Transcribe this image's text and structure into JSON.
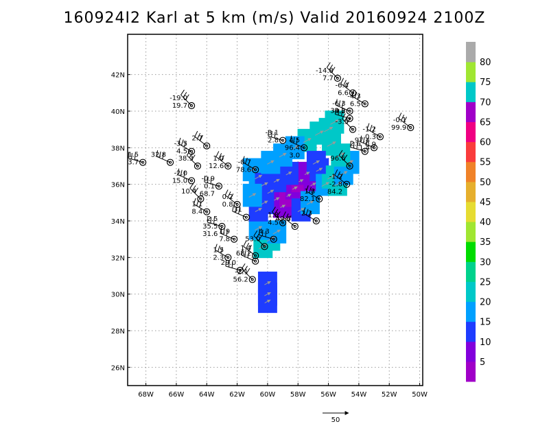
{
  "title": "160924I2 Karl at 5 km (m/s) Valid 20160924 2100Z",
  "chart_data": {
    "type": "heatmap",
    "title": "160924I2 Karl at 5 km (m/s) Valid 20160924 2100Z",
    "x_ticks": [
      "68W",
      "66W",
      "64W",
      "62W",
      "60W",
      "58W",
      "56W",
      "54W",
      "52W",
      "50W"
    ],
    "x_tick_values": [
      -68,
      -66,
      -64,
      -62,
      -60,
      -58,
      -56,
      -54,
      -52,
      -50
    ],
    "y_ticks": [
      "26N",
      "28N",
      "30N",
      "32N",
      "34N",
      "36N",
      "38N",
      "40N",
      "42N"
    ],
    "y_tick_values": [
      26,
      28,
      30,
      32,
      34,
      36,
      38,
      40,
      42
    ],
    "xlim": [
      -69.2,
      -49.8
    ],
    "ylim": [
      25.0,
      44.2
    ],
    "grid": true,
    "colorbar": {
      "placement": "right",
      "levels": [
        "5",
        "10",
        "15",
        "20",
        "25",
        "30",
        "35",
        "40",
        "45",
        "50",
        "55",
        "60",
        "65",
        "70",
        "75",
        "80"
      ],
      "colors": [
        "#a000c8",
        "#8200dc",
        "#1e3cff",
        "#00a0ff",
        "#00c8c8",
        "#00d28c",
        "#00dc00",
        "#a0e632",
        "#e6dc32",
        "#e6af2d",
        "#f08228",
        "#fa3c3c",
        "#f00082",
        "#a000c8",
        "#00c8c8",
        "#a0e632",
        "#aaaaaa"
      ]
    },
    "reference_vector": {
      "label": "50"
    },
    "wind_cells": [
      {
        "lon": -60.0,
        "lat": 30.6,
        "speed": 12
      },
      {
        "lon": -60.0,
        "lat": 30.0,
        "speed": 12
      },
      {
        "lon": -60.0,
        "lat": 29.6,
        "speed": 10
      },
      {
        "lon": -60.3,
        "lat": 32.6,
        "speed": 22
      },
      {
        "lon": -59.8,
        "lat": 33.0,
        "speed": 20
      },
      {
        "lon": -59.4,
        "lat": 33.4,
        "speed": 18
      },
      {
        "lon": -60.6,
        "lat": 33.6,
        "speed": 16
      },
      {
        "lon": -61.0,
        "lat": 36.8,
        "speed": 15
      },
      {
        "lon": -60.6,
        "lat": 36.4,
        "speed": 16
      },
      {
        "lon": -60.2,
        "lat": 36.0,
        "speed": 14
      },
      {
        "lon": -59.8,
        "lat": 35.6,
        "speed": 12
      },
      {
        "lon": -59.4,
        "lat": 35.2,
        "speed": 8
      },
      {
        "lon": -59.0,
        "lat": 34.8,
        "speed": 6
      },
      {
        "lon": -58.6,
        "lat": 35.4,
        "speed": 4
      },
      {
        "lon": -58.2,
        "lat": 35.8,
        "speed": 6
      },
      {
        "lon": -57.8,
        "lat": 36.2,
        "speed": 4
      },
      {
        "lon": -57.4,
        "lat": 36.6,
        "speed": 6
      },
      {
        "lon": -57.0,
        "lat": 36.0,
        "speed": 8
      },
      {
        "lon": -58.6,
        "lat": 36.6,
        "speed": 10
      },
      {
        "lon": -59.4,
        "lat": 36.2,
        "speed": 10
      },
      {
        "lon": -60.2,
        "lat": 35.0,
        "speed": 13
      },
      {
        "lon": -60.6,
        "lat": 34.6,
        "speed": 14
      },
      {
        "lon": -61.0,
        "lat": 35.4,
        "speed": 16
      },
      {
        "lon": -57.8,
        "lat": 34.6,
        "speed": 14
      },
      {
        "lon": -57.2,
        "lat": 35.0,
        "speed": 15
      },
      {
        "lon": -56.6,
        "lat": 36.8,
        "speed": 12
      },
      {
        "lon": -56.2,
        "lat": 36.0,
        "speed": 18
      },
      {
        "lon": -55.8,
        "lat": 36.4,
        "speed": 20
      },
      {
        "lon": -55.4,
        "lat": 36.0,
        "speed": 22
      },
      {
        "lon": -55.0,
        "lat": 36.6,
        "speed": 18
      },
      {
        "lon": -54.6,
        "lat": 37.2,
        "speed": 16
      },
      {
        "lon": -55.2,
        "lat": 37.6,
        "speed": 22
      },
      {
        "lon": -55.8,
        "lat": 38.2,
        "speed": 24
      },
      {
        "lon": -56.6,
        "lat": 38.8,
        "speed": 22
      },
      {
        "lon": -57.4,
        "lat": 38.4,
        "speed": 20
      },
      {
        "lon": -58.2,
        "lat": 38.0,
        "speed": 18
      },
      {
        "lon": -59.0,
        "lat": 37.6,
        "speed": 16
      },
      {
        "lon": -59.8,
        "lat": 37.2,
        "speed": 15
      },
      {
        "lon": -55.6,
        "lat": 39.4,
        "speed": 22
      },
      {
        "lon": -56.0,
        "lat": 39.0,
        "speed": 24
      },
      {
        "lon": -56.8,
        "lat": 37.2,
        "speed": 14
      }
    ],
    "stations": [
      {
        "lon": -55.4,
        "lat": 41.8,
        "labels": [
          "-14.8",
          "7.7"
        ]
      },
      {
        "lon": -54.4,
        "lat": 41.0,
        "labels": [
          "-6.4",
          "6.6"
        ]
      },
      {
        "lon": -53.6,
        "lat": 40.4,
        "labels": [
          "-4.3",
          "6.5"
        ]
      },
      {
        "lon": -54.6,
        "lat": 40.0,
        "labels": [
          "-6.3",
          "-4.2"
        ]
      },
      {
        "lon": -54.6,
        "lat": 39.6,
        "labels": [
          "39.8"
        ]
      },
      {
        "lon": -54.4,
        "lat": 39.0,
        "labels": [
          "-3.5"
        ]
      },
      {
        "lon": -50.6,
        "lat": 39.1,
        "labels": [
          "-0.1",
          "99.9"
        ]
      },
      {
        "lon": -52.6,
        "lat": 38.6,
        "labels": [
          "-1.2",
          "0.3",
          "0.9"
        ]
      },
      {
        "lon": -53.0,
        "lat": 38.0,
        "labels": [
          "97.4",
          "1.4"
        ]
      },
      {
        "lon": -53.6,
        "lat": 37.8,
        "labels": [
          "2.6"
        ]
      },
      {
        "lon": -54.6,
        "lat": 37.0,
        "labels": [
          "96.6"
        ]
      },
      {
        "lon": -54.8,
        "lat": 36.0,
        "labels": [
          "-1.2",
          "-2.8",
          "84.2"
        ]
      },
      {
        "lon": -56.6,
        "lat": 35.2,
        "labels": [
          "1.8",
          "82.1"
        ]
      },
      {
        "lon": -57.6,
        "lat": 38.0,
        "labels": [
          "4.5",
          "96.4",
          "3.0"
        ]
      },
      {
        "lon": -59.0,
        "lat": 38.4,
        "labels": [
          "-3.1",
          "2.8"
        ]
      },
      {
        "lon": -65.0,
        "lat": 40.3,
        "labels": [
          "-19.0",
          "19.7"
        ]
      },
      {
        "lon": -64.0,
        "lat": 38.1,
        "labels": [
          "2.7"
        ]
      },
      {
        "lon": -65.0,
        "lat": 37.8,
        "labels": [
          "-3.5",
          "4.5"
        ]
      },
      {
        "lon": -66.4,
        "lat": 37.2,
        "labels": [
          "32.8"
        ]
      },
      {
        "lon": -68.2,
        "lat": 37.2,
        "labels": [
          "-1.5",
          "3.7"
        ]
      },
      {
        "lon": -64.6,
        "lat": 37.0,
        "labels": [
          "38.3"
        ]
      },
      {
        "lon": -62.6,
        "lat": 37.0,
        "labels": [
          "1.0",
          "12.6"
        ]
      },
      {
        "lon": -60.8,
        "lat": 36.8,
        "labels": [
          "-0.7",
          "78.6"
        ]
      },
      {
        "lon": -65.0,
        "lat": 36.2,
        "labels": [
          "-2.0",
          "15.0"
        ]
      },
      {
        "lon": -63.2,
        "lat": 35.9,
        "labels": [
          "-0.9",
          "0.1",
          "68.7"
        ]
      },
      {
        "lon": -64.4,
        "lat": 35.2,
        "labels": [
          "10.4"
        ]
      },
      {
        "lon": -62.0,
        "lat": 34.9,
        "labels": [
          "0.2",
          "0.8"
        ]
      },
      {
        "lon": -64.0,
        "lat": 34.5,
        "labels": [
          "1.1",
          "8.4"
        ]
      },
      {
        "lon": -61.4,
        "lat": 34.2,
        "labels": [
          "31"
        ]
      },
      {
        "lon": -63.0,
        "lat": 33.7,
        "labels": [
          "2.5",
          "35.5",
          "31.6"
        ]
      },
      {
        "lon": -59.0,
        "lat": 33.9,
        "labels": [
          "1.8",
          "4.5"
        ]
      },
      {
        "lon": -58.2,
        "lat": 33.7,
        "labels": [
          "49.6"
        ]
      },
      {
        "lon": -56.8,
        "lat": 34.0,
        "labels": [
          "2.3"
        ]
      },
      {
        "lon": -62.2,
        "lat": 33.0,
        "labels": [
          "1.9",
          "7.8"
        ]
      },
      {
        "lon": -59.6,
        "lat": 33.0,
        "labels": [
          "4.3"
        ]
      },
      {
        "lon": -60.2,
        "lat": 32.6,
        "labels": [
          "53.0"
        ]
      },
      {
        "lon": -60.8,
        "lat": 32.1,
        "labels": [
          "1.4"
        ]
      },
      {
        "lon": -62.6,
        "lat": 32.0,
        "labels": [
          "1.5",
          "2.3"
        ]
      },
      {
        "lon": -60.8,
        "lat": 31.8,
        "labels": [
          "68.2"
        ]
      },
      {
        "lon": -61.8,
        "lat": 31.3,
        "labels": [
          "29.0"
        ]
      },
      {
        "lon": -61.0,
        "lat": 30.8,
        "labels": [
          "-2.1",
          "56.2"
        ]
      }
    ]
  }
}
